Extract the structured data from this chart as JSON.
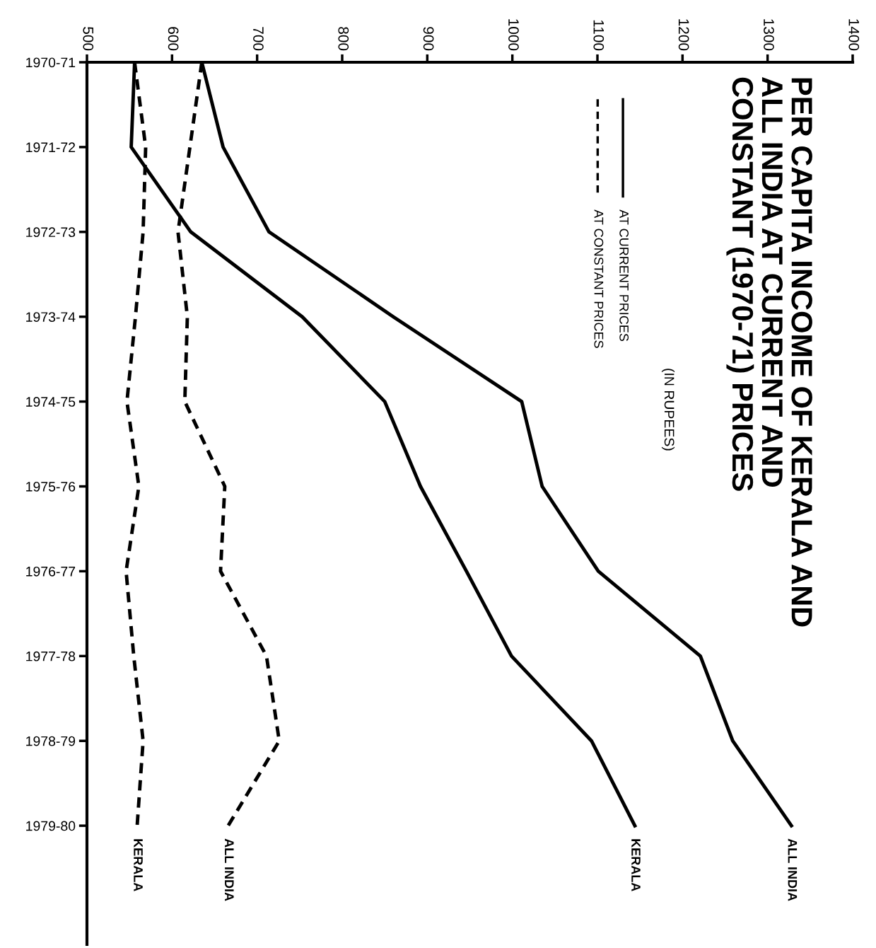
{
  "chart_data": {
    "type": "line",
    "orientation": "horizontal",
    "title": "PER CAPITA INCOME OF KERALA AND\nALL INDIA AT CURRENT AND\nCONSTANT (1970-71) PRICES",
    "subtitle": "(IN RUPEES)",
    "categories": [
      "1970-71",
      "1971-72",
      "1972-73",
      "1973-74",
      "1974-75",
      "1975-76",
      "1976-77",
      "1977-78",
      "1978-79",
      "1979-80"
    ],
    "series": [
      {
        "name": "ALL INDIA",
        "color": "#000000",
        "line_style": "solid",
        "values": [
          635,
          660,
          714,
          860,
          1011,
          1035,
          1101,
          1221,
          1259,
          1328
        ]
      },
      {
        "name": "KERALA",
        "color": "#000000",
        "line_style": "solid",
        "values": [
          556,
          552,
          622,
          753,
          850,
          892,
          946,
          999,
          1093,
          1144
        ]
      },
      {
        "name": "ALL INDIA",
        "color": "#000000",
        "line_style": "dashed",
        "values": [
          635,
          621,
          607,
          618,
          615,
          662,
          657,
          711,
          726,
          666
        ]
      },
      {
        "name": "KERALA",
        "color": "#000000",
        "line_style": "dashed",
        "values": [
          556,
          569,
          566,
          557,
          547,
          561,
          546,
          555,
          566,
          559
        ]
      }
    ],
    "annotations": [
      "AT CURRENT PRICES",
      "AT CONSTANT PRICES"
    ],
    "grid": false,
    "xlim": [
      500,
      1400
    ],
    "xticks": [
      500,
      600,
      700,
      800,
      900,
      1000,
      1100,
      1200,
      1300,
      1400
    ]
  }
}
